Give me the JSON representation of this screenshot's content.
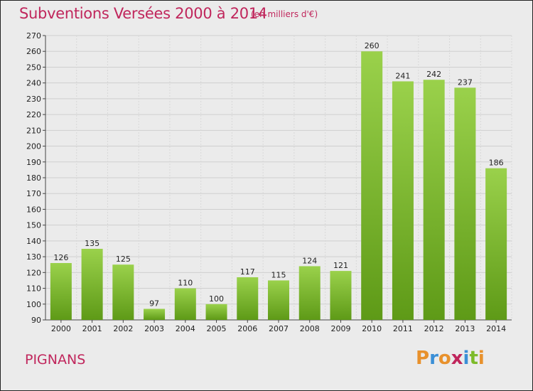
{
  "header": {
    "title": "Subventions Versées 2000 à 2014",
    "subtitle": "(en milliers d'€)"
  },
  "footer": {
    "commune": "PIGNANS",
    "logo_text": "Proxiti"
  },
  "colors": {
    "accent": "#c0265c",
    "bar_top": "#9ad14b",
    "bar_bottom": "#5e9a17",
    "background": "#ebebeb",
    "logo_letters": [
      "#e8912c",
      "#3b8fd6",
      "#e8912c",
      "#c0265c",
      "#3b8fd6",
      "#7dbb2a",
      "#e8912c"
    ]
  },
  "chart_data": {
    "type": "bar",
    "title": "Subventions Versées 2000 à 2014",
    "subtitle": "(en milliers d'€)",
    "xlabel": "",
    "ylabel": "",
    "categories": [
      "2000",
      "2001",
      "2002",
      "2003",
      "2004",
      "2005",
      "2006",
      "2007",
      "2008",
      "2009",
      "2010",
      "2011",
      "2012",
      "2013",
      "2014"
    ],
    "values": [
      126,
      135,
      125,
      97,
      110,
      100,
      117,
      115,
      124,
      121,
      260,
      241,
      242,
      237,
      186
    ],
    "ylim": [
      90,
      270
    ],
    "yticks": [
      90,
      100,
      110,
      120,
      130,
      140,
      150,
      160,
      170,
      180,
      190,
      200,
      210,
      220,
      230,
      240,
      250,
      260,
      270
    ],
    "grid": true,
    "legend": "none"
  }
}
